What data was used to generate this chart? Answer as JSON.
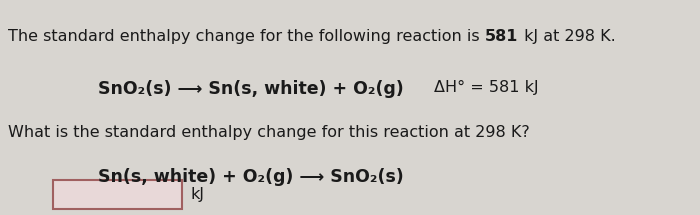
{
  "bg_color": "#d8d5d0",
  "text_color": "#1a1a1a",
  "line1_pre": "The standard enthalpy change for the following reaction is ",
  "line1_bold": "581",
  "line1_post": " kJ at 298 K.",
  "line2_reaction": "SnO₂(s) ⟶ Sn(s, white) + O₂(g)",
  "line2_delta": "ΔH° = 581 kJ",
  "line3": "What is the standard enthalpy change for this reaction at 298 K?",
  "line4_reaction": "Sn(s, white) + O₂(g) ⟶ SnO₂(s)",
  "kJ_label": "kJ",
  "input_box_facecolor": "#e8d8d8",
  "input_box_edgecolor": "#a06060",
  "font_size": 11.5,
  "font_size_reaction": 12.5
}
